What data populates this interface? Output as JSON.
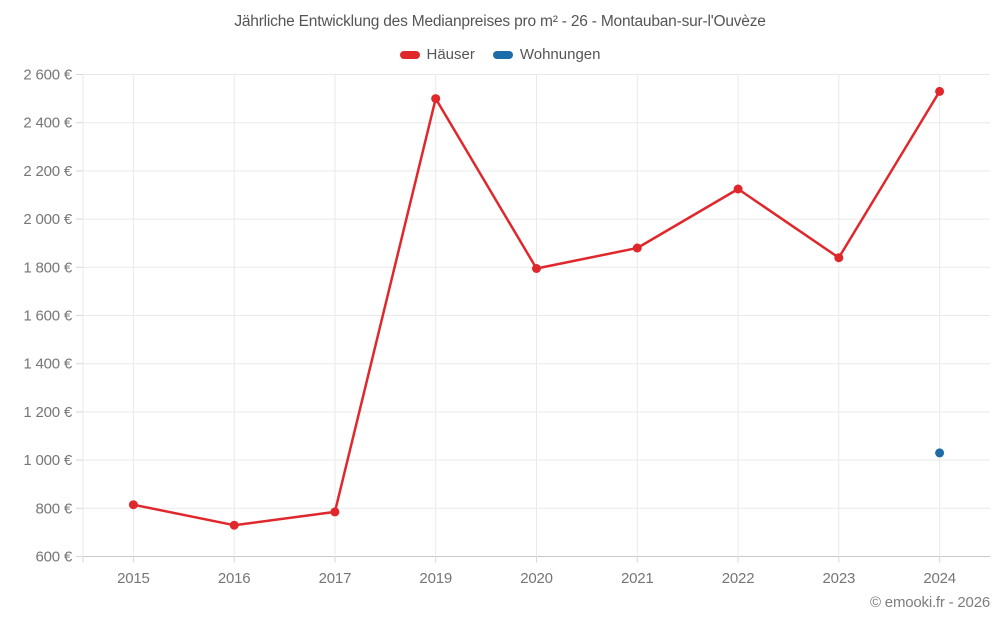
{
  "title": "Jährliche Entwicklung des Medianpreises pro m² - 26 - Montauban-sur-l'Ouvèze",
  "footer": "© emooki.fr - 2026",
  "legend": [
    {
      "label": "Häuser",
      "color": "#e0282c"
    },
    {
      "label": "Wohnungen",
      "color": "#1b6ca8"
    }
  ],
  "colors": {
    "background": "#ffffff",
    "grid": "#e9e9e9",
    "axis_line": "#c9c9c9",
    "tick_mark": "#d6d6d6",
    "title_text": "#555555",
    "axis_text": "#767676",
    "footer_text": "#7d7d7d",
    "series_red": "#e0282c",
    "series_blue": "#1b6ca8"
  },
  "chart_data": {
    "type": "line",
    "title": "Jährliche Entwicklung des Medianpreises pro m² - 26 - Montauban-sur-l'Ouvèze",
    "xlabel": "",
    "ylabel": "",
    "categories": [
      "2015",
      "2016",
      "2017",
      "2019",
      "2020",
      "2021",
      "2022",
      "2023",
      "2024"
    ],
    "series": [
      {
        "name": "Häuser",
        "color": "#e0282c",
        "values": [
          815,
          730,
          785,
          2500,
          1795,
          1880,
          2125,
          1840,
          2530
        ]
      },
      {
        "name": "Wohnungen",
        "color": "#1b6ca8",
        "values": [
          null,
          null,
          null,
          null,
          null,
          null,
          null,
          null,
          1030
        ]
      }
    ],
    "ylim": [
      600,
      2600
    ],
    "ytick_step": 200,
    "ytick_values": [
      600,
      800,
      1000,
      1200,
      1400,
      1600,
      1800,
      2000,
      2200,
      2400,
      2600
    ],
    "ytick_labels": [
      "600 €",
      "800 €",
      "1 000 €",
      "1 200 €",
      "1 400 €",
      "1 600 €",
      "1 800 €",
      "2 000 €",
      "2 200 €",
      "2 400 €",
      "2 600 €"
    ],
    "grid": true,
    "legend_position": "top",
    "currency_suffix": "€"
  }
}
